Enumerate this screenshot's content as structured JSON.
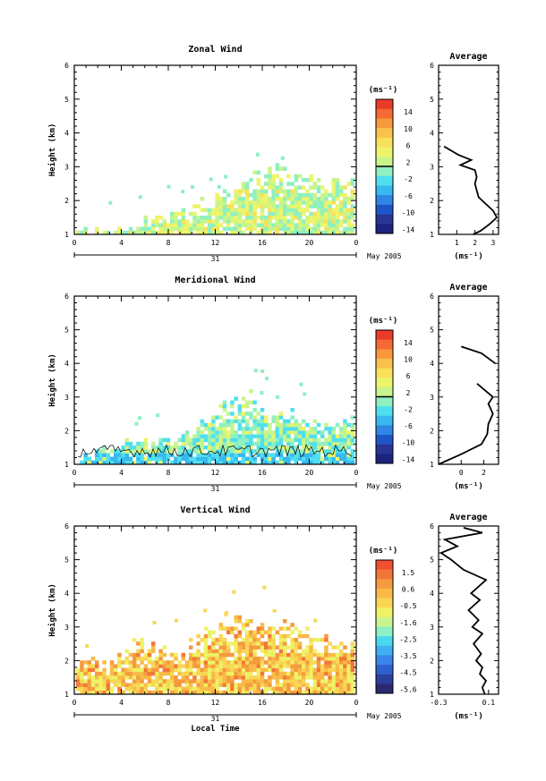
{
  "chart_data": [
    {
      "type": "heatmap",
      "title": "Zonal Wind",
      "ylabel": "Height (km)",
      "ylim": [
        1,
        6
      ],
      "xlim": [
        0,
        24
      ],
      "x_ticks": [
        "0",
        "4",
        "8",
        "12",
        "16",
        "20",
        "0"
      ],
      "y_ticks": [
        "1",
        "2",
        "3",
        "4",
        "5",
        "6"
      ],
      "date_bar": {
        "day": "31",
        "month": "May 2005"
      },
      "colorbar": {
        "unit": "(ms⁻¹)",
        "range": [
          -16,
          16
        ],
        "tick_labels": [
          "14",
          "10",
          "6",
          "2",
          "-2",
          "-6",
          "-10",
          "-14"
        ],
        "zero_line": true
      },
      "field_extent": [
        {
          "x": 0.5,
          "top": 1.15
        },
        {
          "x": 3,
          "top": 1.2
        },
        {
          "x": 6,
          "top": 1.45
        },
        {
          "x": 8,
          "top": 1.6
        },
        {
          "x": 11,
          "top": 2.0
        },
        {
          "x": 13,
          "top": 2.3
        },
        {
          "x": 15,
          "top": 2.8
        },
        {
          "x": 17,
          "top": 3.1
        },
        {
          "x": 19,
          "top": 2.9
        },
        {
          "x": 21,
          "top": 2.7
        },
        {
          "x": 23.5,
          "top": 2.6
        }
      ],
      "profile": {
        "title": "Average",
        "xlabel": "(ms⁻¹)",
        "x_ticks": [
          "1",
          "2",
          "3"
        ],
        "xlim": [
          0,
          3.3
        ],
        "points": [
          [
            1.9,
            1.0
          ],
          [
            2.3,
            1.1
          ],
          [
            2.8,
            1.3
          ],
          [
            3.2,
            1.5
          ],
          [
            3.0,
            1.7
          ],
          [
            2.6,
            1.9
          ],
          [
            2.2,
            2.1
          ],
          [
            2.1,
            2.3
          ],
          [
            2.0,
            2.5
          ],
          [
            2.1,
            2.7
          ],
          [
            2.0,
            2.9
          ],
          [
            1.2,
            3.05
          ],
          [
            1.8,
            3.2
          ],
          [
            1.1,
            3.35
          ],
          [
            0.3,
            3.6
          ]
        ]
      }
    },
    {
      "type": "heatmap",
      "title": "Meridional Wind",
      "ylabel": "Height (km)",
      "ylim": [
        1,
        6
      ],
      "xlim": [
        0,
        24
      ],
      "x_ticks": [
        "0",
        "4",
        "8",
        "12",
        "16",
        "20",
        "0"
      ],
      "y_ticks": [
        "1",
        "2",
        "3",
        "4",
        "5",
        "6"
      ],
      "date_bar": {
        "day": "31",
        "month": "May 2005"
      },
      "colorbar": {
        "unit": "(ms⁻¹)",
        "range": [
          -16,
          16
        ],
        "tick_labels": [
          "14",
          "10",
          "6",
          "2",
          "-2",
          "-6",
          "-10",
          "-14"
        ],
        "zero_line": true
      },
      "field_extent": [
        {
          "x": 0.5,
          "top": 1.3
        },
        {
          "x": 3,
          "top": 1.5
        },
        {
          "x": 6,
          "top": 1.9
        },
        {
          "x": 8,
          "top": 1.7
        },
        {
          "x": 11,
          "top": 2.3
        },
        {
          "x": 13,
          "top": 2.9
        },
        {
          "x": 15,
          "top": 3.1
        },
        {
          "x": 17,
          "top": 2.6
        },
        {
          "x": 19,
          "top": 2.5
        },
        {
          "x": 21,
          "top": 2.3
        },
        {
          "x": 23.5,
          "top": 2.4
        }
      ],
      "profile": {
        "title": "Average",
        "xlabel": "(ms⁻¹)",
        "x_ticks": [
          "0",
          "2"
        ],
        "xlim": [
          -2,
          3.3
        ],
        "points_segments": [
          [
            [
              -2.0,
              1.0
            ],
            [
              0.0,
              1.3
            ],
            [
              1.8,
              1.6
            ],
            [
              2.3,
              1.9
            ],
            [
              2.4,
              2.2
            ],
            [
              2.8,
              2.5
            ],
            [
              2.4,
              2.8
            ],
            [
              2.8,
              3.0
            ],
            [
              1.4,
              3.4
            ]
          ],
          [
            [
              0.0,
              4.5
            ],
            [
              1.8,
              4.3
            ],
            [
              3.0,
              4.0
            ]
          ]
        ]
      }
    },
    {
      "type": "heatmap",
      "title": "Vertical Wind",
      "ylabel": "Height (km)",
      "xlabel": "Local Time",
      "ylim": [
        1,
        6
      ],
      "xlim": [
        0,
        24
      ],
      "x_ticks": [
        "0",
        "4",
        "8",
        "12",
        "16",
        "20",
        "0"
      ],
      "y_ticks": [
        "1",
        "2",
        "3",
        "4",
        "5",
        "6"
      ],
      "date_bar": {
        "day": "31",
        "month": "May 2005"
      },
      "colorbar": {
        "unit": "(ms⁻¹)",
        "range": [
          -6.2,
          2.0
        ],
        "tick_labels": [
          "1.5",
          "0.6",
          "-0.5",
          "-1.6",
          "-2.5",
          "-3.5",
          "-4.5",
          "-5.6"
        ],
        "zero_line": false
      },
      "field_extent": [
        {
          "x": 0.5,
          "top": 2.2
        },
        {
          "x": 3,
          "top": 2.0
        },
        {
          "x": 5,
          "top": 2.6
        },
        {
          "x": 7,
          "top": 2.4
        },
        {
          "x": 9,
          "top": 2.3
        },
        {
          "x": 11,
          "top": 2.9
        },
        {
          "x": 13,
          "top": 3.2
        },
        {
          "x": 15,
          "top": 3.4
        },
        {
          "x": 17,
          "top": 3.2
        },
        {
          "x": 19,
          "top": 3.0
        },
        {
          "x": 21,
          "top": 2.8
        },
        {
          "x": 23.5,
          "top": 2.7
        }
      ],
      "profile": {
        "title": "Average",
        "xlabel": "(ms⁻¹)",
        "x_ticks": [
          "-0.3",
          "0.1"
        ],
        "xlim": [
          -0.3,
          0.18
        ],
        "points": [
          [
            0.07,
            1.0
          ],
          [
            0.05,
            1.2
          ],
          [
            0.08,
            1.4
          ],
          [
            0.03,
            1.6
          ],
          [
            0.05,
            1.8
          ],
          [
            0.0,
            2.0
          ],
          [
            0.04,
            2.2
          ],
          [
            -0.02,
            2.5
          ],
          [
            0.05,
            2.8
          ],
          [
            -0.03,
            3.0
          ],
          [
            0.02,
            3.2
          ],
          [
            -0.06,
            3.5
          ],
          [
            0.03,
            3.8
          ],
          [
            -0.04,
            4.0
          ],
          [
            0.08,
            4.4
          ],
          [
            -0.1,
            4.7
          ],
          [
            -0.2,
            5.0
          ],
          [
            -0.28,
            5.2
          ],
          [
            -0.15,
            5.4
          ],
          [
            -0.25,
            5.6
          ],
          [
            0.05,
            5.8
          ],
          [
            -0.1,
            5.95
          ]
        ]
      }
    }
  ]
}
